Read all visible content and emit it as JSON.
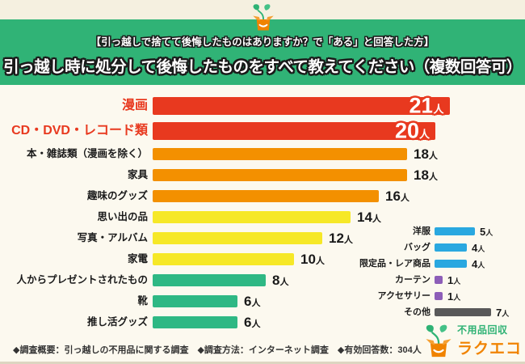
{
  "header": {
    "subtitle": "【引っ越しで捨てて後悔したものはありますか？で「ある」と回答した方】",
    "title": "引っ越し時に処分して後悔したものをすべて教えてください（複数回答可）"
  },
  "colors": {
    "banner_green": "#30b376",
    "highlight_red": "#e8391f",
    "orange": "#f39000",
    "yellow": "#f6e827",
    "green": "#2eb884",
    "blue": "#29a8e0",
    "purple": "#8d5eb8",
    "gray": "#595959"
  },
  "chart_data": [
    {
      "type": "bar",
      "orientation": "horizontal",
      "title": "引っ越し時に処分して後悔したものをすべて教えてください（複数回答可）",
      "unit": "人",
      "categories": [
        "漫画",
        "CD・DVD・レコード類",
        "本・雑誌類（漫画を除く）",
        "家具",
        "趣味のグッズ",
        "思い出の品",
        "写真・アルバム",
        "家電",
        "人からプレゼントされたもの",
        "靴",
        "推し活グッズ"
      ],
      "values": [
        21,
        20,
        18,
        18,
        16,
        14,
        12,
        10,
        8,
        6,
        6
      ],
      "bar_colors": [
        "#e8391f",
        "#e8391f",
        "#f39000",
        "#f39000",
        "#f39000",
        "#f6e827",
        "#f6e827",
        "#f6e827",
        "#2eb884",
        "#2eb884",
        "#2eb884"
      ],
      "emphasized": [
        true,
        true,
        false,
        false,
        false,
        false,
        false,
        false,
        false,
        false,
        false
      ],
      "xlim": [
        0,
        23
      ],
      "grid": false,
      "legend": false
    },
    {
      "type": "bar",
      "orientation": "horizontal",
      "title": "",
      "unit": "人",
      "categories": [
        "洋服",
        "バッグ",
        "限定品・レア商品",
        "カーテン",
        "アクセサリー",
        "その他"
      ],
      "values": [
        5,
        4,
        4,
        1,
        1,
        7
      ],
      "bar_colors": [
        "#29a8e0",
        "#29a8e0",
        "#29a8e0",
        "#8d5eb8",
        "#8d5eb8",
        "#595959"
      ],
      "emphasized": [
        false,
        false,
        false,
        false,
        false,
        false
      ],
      "xlim": [
        0,
        8
      ],
      "grid": false,
      "legend": false
    }
  ],
  "footer": {
    "survey_notes": "◆調査概要：引っ越しの不用品に関する調査　◆調査方法：インターネット調査　◆有効回答数：304人"
  },
  "logo": {
    "service_type": "不用品回収",
    "brand_name": "ラクエコ"
  }
}
